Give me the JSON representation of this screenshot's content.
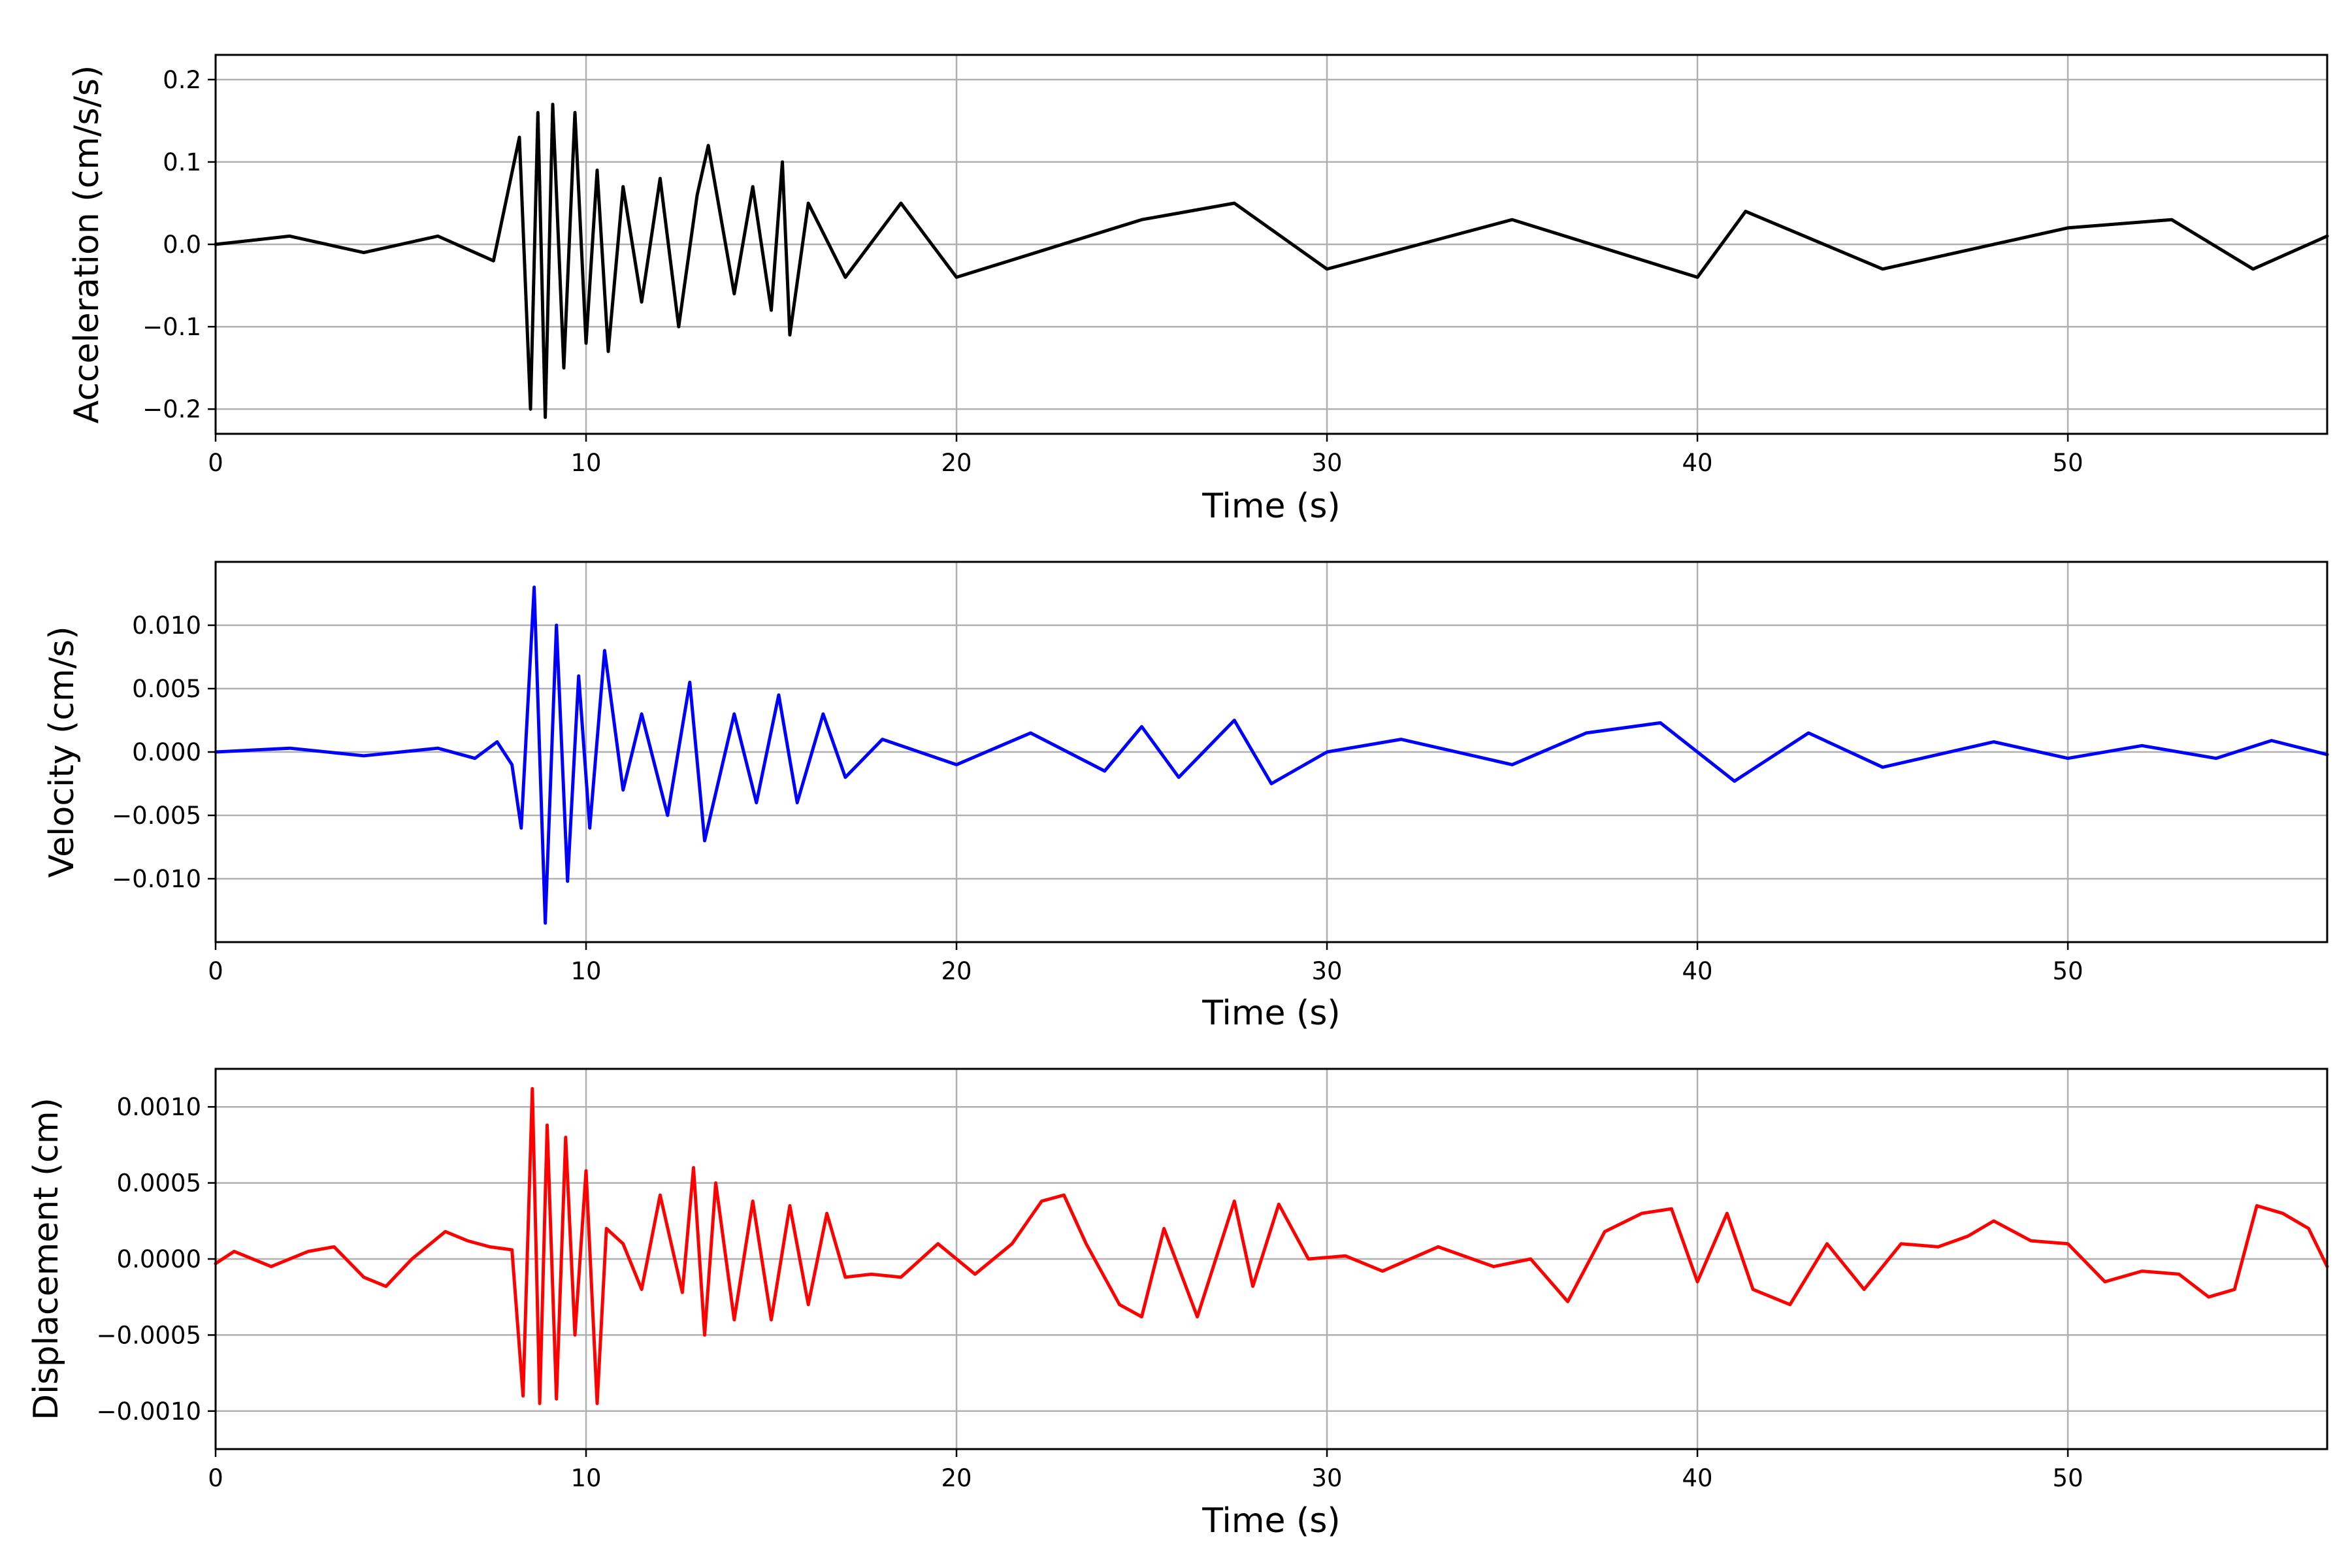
{
  "chart_data": [
    {
      "type": "line",
      "xlabel": "Time (s)",
      "ylabel": "Acceleration (cm/s/s)",
      "xlim": [
        0,
        57
      ],
      "ylim": [
        -0.23,
        0.23
      ],
      "xticks": [
        0,
        10,
        20,
        30,
        40,
        50
      ],
      "xtick_labels": [
        "0",
        "10",
        "20",
        "30",
        "40",
        "50"
      ],
      "yticks": [
        0.2,
        0.1,
        0.0,
        -0.1,
        -0.2
      ],
      "ytick_labels": [
        "0.2",
        "0.1",
        "0.0",
        "−0.1",
        "−0.2"
      ],
      "grid": true,
      "color": "#000000",
      "x": [
        0,
        2,
        4,
        6,
        7.5,
        8.2,
        8.5,
        8.7,
        8.9,
        9.1,
        9.4,
        9.7,
        10.0,
        10.3,
        10.6,
        11.0,
        11.5,
        12.0,
        12.5,
        13.0,
        13.3,
        14.0,
        14.5,
        15.0,
        15.3,
        15.5,
        16.0,
        17.0,
        18.5,
        20,
        25,
        27.5,
        30,
        35,
        40,
        41.3,
        45,
        50,
        52.8,
        55,
        57
      ],
      "y": [
        0.0,
        0.01,
        -0.01,
        0.01,
        -0.02,
        0.13,
        -0.2,
        0.16,
        -0.21,
        0.17,
        -0.15,
        0.16,
        -0.12,
        0.09,
        -0.13,
        0.07,
        -0.07,
        0.08,
        -0.1,
        0.06,
        0.12,
        -0.06,
        0.07,
        -0.08,
        0.1,
        -0.11,
        0.05,
        -0.04,
        0.05,
        -0.04,
        0.03,
        0.05,
        -0.03,
        0.03,
        -0.04,
        0.04,
        -0.03,
        0.02,
        0.03,
        -0.03,
        0.01
      ]
    },
    {
      "type": "line",
      "xlabel": "Time (s)",
      "ylabel": "Velocity (cm/s)",
      "xlim": [
        0,
        57
      ],
      "ylim": [
        -0.015,
        0.015
      ],
      "xticks": [
        0,
        10,
        20,
        30,
        40,
        50
      ],
      "xtick_labels": [
        "0",
        "10",
        "20",
        "30",
        "40",
        "50"
      ],
      "yticks": [
        0.01,
        0.005,
        0.0,
        -0.005,
        -0.01
      ],
      "ytick_labels": [
        "0.010",
        "0.005",
        "0.000",
        "−0.005",
        "−0.010"
      ],
      "grid": true,
      "color": "#0000ff",
      "x": [
        0,
        2,
        4,
        6,
        7.0,
        7.6,
        8.0,
        8.25,
        8.6,
        8.9,
        9.2,
        9.5,
        9.8,
        10.1,
        10.5,
        11.0,
        11.5,
        12.2,
        12.8,
        13.2,
        14.0,
        14.6,
        15.2,
        15.7,
        16.4,
        17.0,
        18.0,
        20,
        22,
        24,
        25.0,
        26.0,
        27.5,
        28.5,
        30,
        32,
        35,
        37,
        39.0,
        41.0,
        43,
        45,
        48,
        50,
        52,
        54,
        55.5,
        57
      ],
      "y": [
        0.0,
        0.0003,
        -0.0003,
        0.0003,
        -0.0005,
        0.0008,
        -0.001,
        -0.006,
        0.013,
        -0.0135,
        0.01,
        -0.0102,
        0.006,
        -0.006,
        0.008,
        -0.003,
        0.003,
        -0.005,
        0.0055,
        -0.007,
        0.003,
        -0.004,
        0.0045,
        -0.004,
        0.003,
        -0.002,
        0.001,
        -0.001,
        0.0015,
        -0.0015,
        0.002,
        -0.002,
        0.0025,
        -0.0025,
        0.0,
        0.001,
        -0.001,
        0.0015,
        0.0023,
        -0.0023,
        0.0015,
        -0.0012,
        0.0008,
        -0.0005,
        0.0005,
        -0.0005,
        0.0009,
        -0.0002
      ]
    },
    {
      "type": "line",
      "xlabel": "Time (s)",
      "ylabel": "Displacement (cm)",
      "xlim": [
        0,
        57
      ],
      "ylim": [
        -0.00125,
        0.00125
      ],
      "xticks": [
        0,
        10,
        20,
        30,
        40,
        50
      ],
      "xtick_labels": [
        "0",
        "10",
        "20",
        "30",
        "40",
        "50"
      ],
      "yticks": [
        0.001,
        0.0005,
        0.0,
        -0.0005,
        -0.001
      ],
      "ytick_labels": [
        "0.0010",
        "0.0005",
        "0.0000",
        "−0.0005",
        "−0.0010"
      ],
      "grid": true,
      "color": "#ff0000",
      "x": [
        0,
        0.5,
        1.5,
        2.5,
        3.2,
        4.0,
        4.6,
        5.3,
        6.2,
        6.8,
        7.4,
        8.0,
        8.3,
        8.55,
        8.75,
        8.95,
        9.2,
        9.45,
        9.7,
        10.0,
        10.3,
        10.55,
        11.0,
        11.5,
        12.0,
        12.6,
        12.9,
        13.2,
        13.5,
        14.0,
        14.5,
        15.0,
        15.5,
        16.0,
        16.5,
        17.0,
        17.7,
        18.5,
        19.5,
        20.5,
        21.5,
        22.3,
        22.9,
        23.5,
        24.4,
        25.0,
        25.6,
        26.5,
        27.5,
        28.0,
        28.7,
        29.5,
        30.5,
        31.5,
        33,
        34.5,
        35.5,
        36.5,
        37.5,
        38.5,
        39.3,
        40.0,
        40.8,
        41.5,
        42.5,
        43.5,
        44.5,
        45.5,
        46.5,
        47.3,
        48.0,
        49.0,
        50.0,
        51.0,
        52.0,
        53.0,
        53.8,
        54.5,
        55.1,
        55.8,
        56.5,
        57
      ],
      "y": [
        -3e-05,
        5e-05,
        -5e-05,
        5e-05,
        8e-05,
        -0.00012,
        -0.00018,
        0.0,
        0.00018,
        0.00012,
        8e-05,
        6e-05,
        -0.0009,
        0.00112,
        -0.00095,
        0.00088,
        -0.00092,
        0.0008,
        -0.0005,
        0.00058,
        -0.00095,
        0.0002,
        0.0001,
        -0.0002,
        0.00042,
        -0.00022,
        0.0006,
        -0.0005,
        0.0005,
        -0.0004,
        0.00038,
        -0.0004,
        0.00035,
        -0.0003,
        0.0003,
        -0.00012,
        -0.0001,
        -0.00012,
        0.0001,
        -0.0001,
        0.0001,
        0.00038,
        0.00042,
        0.0001,
        -0.0003,
        -0.00038,
        0.0002,
        -0.00038,
        0.00038,
        -0.00018,
        0.00036,
        0.0,
        2e-05,
        -8e-05,
        8e-05,
        -5e-05,
        0.0,
        -0.00028,
        0.00018,
        0.0003,
        0.00033,
        -0.00015,
        0.0003,
        -0.0002,
        -0.0003,
        0.0001,
        -0.0002,
        0.0001,
        8e-05,
        0.00015,
        0.00025,
        0.00012,
        0.0001,
        -0.00015,
        -8e-05,
        -0.0001,
        -0.00025,
        -0.0002,
        0.00035,
        0.0003,
        0.0002,
        -5e-05
      ]
    }
  ]
}
